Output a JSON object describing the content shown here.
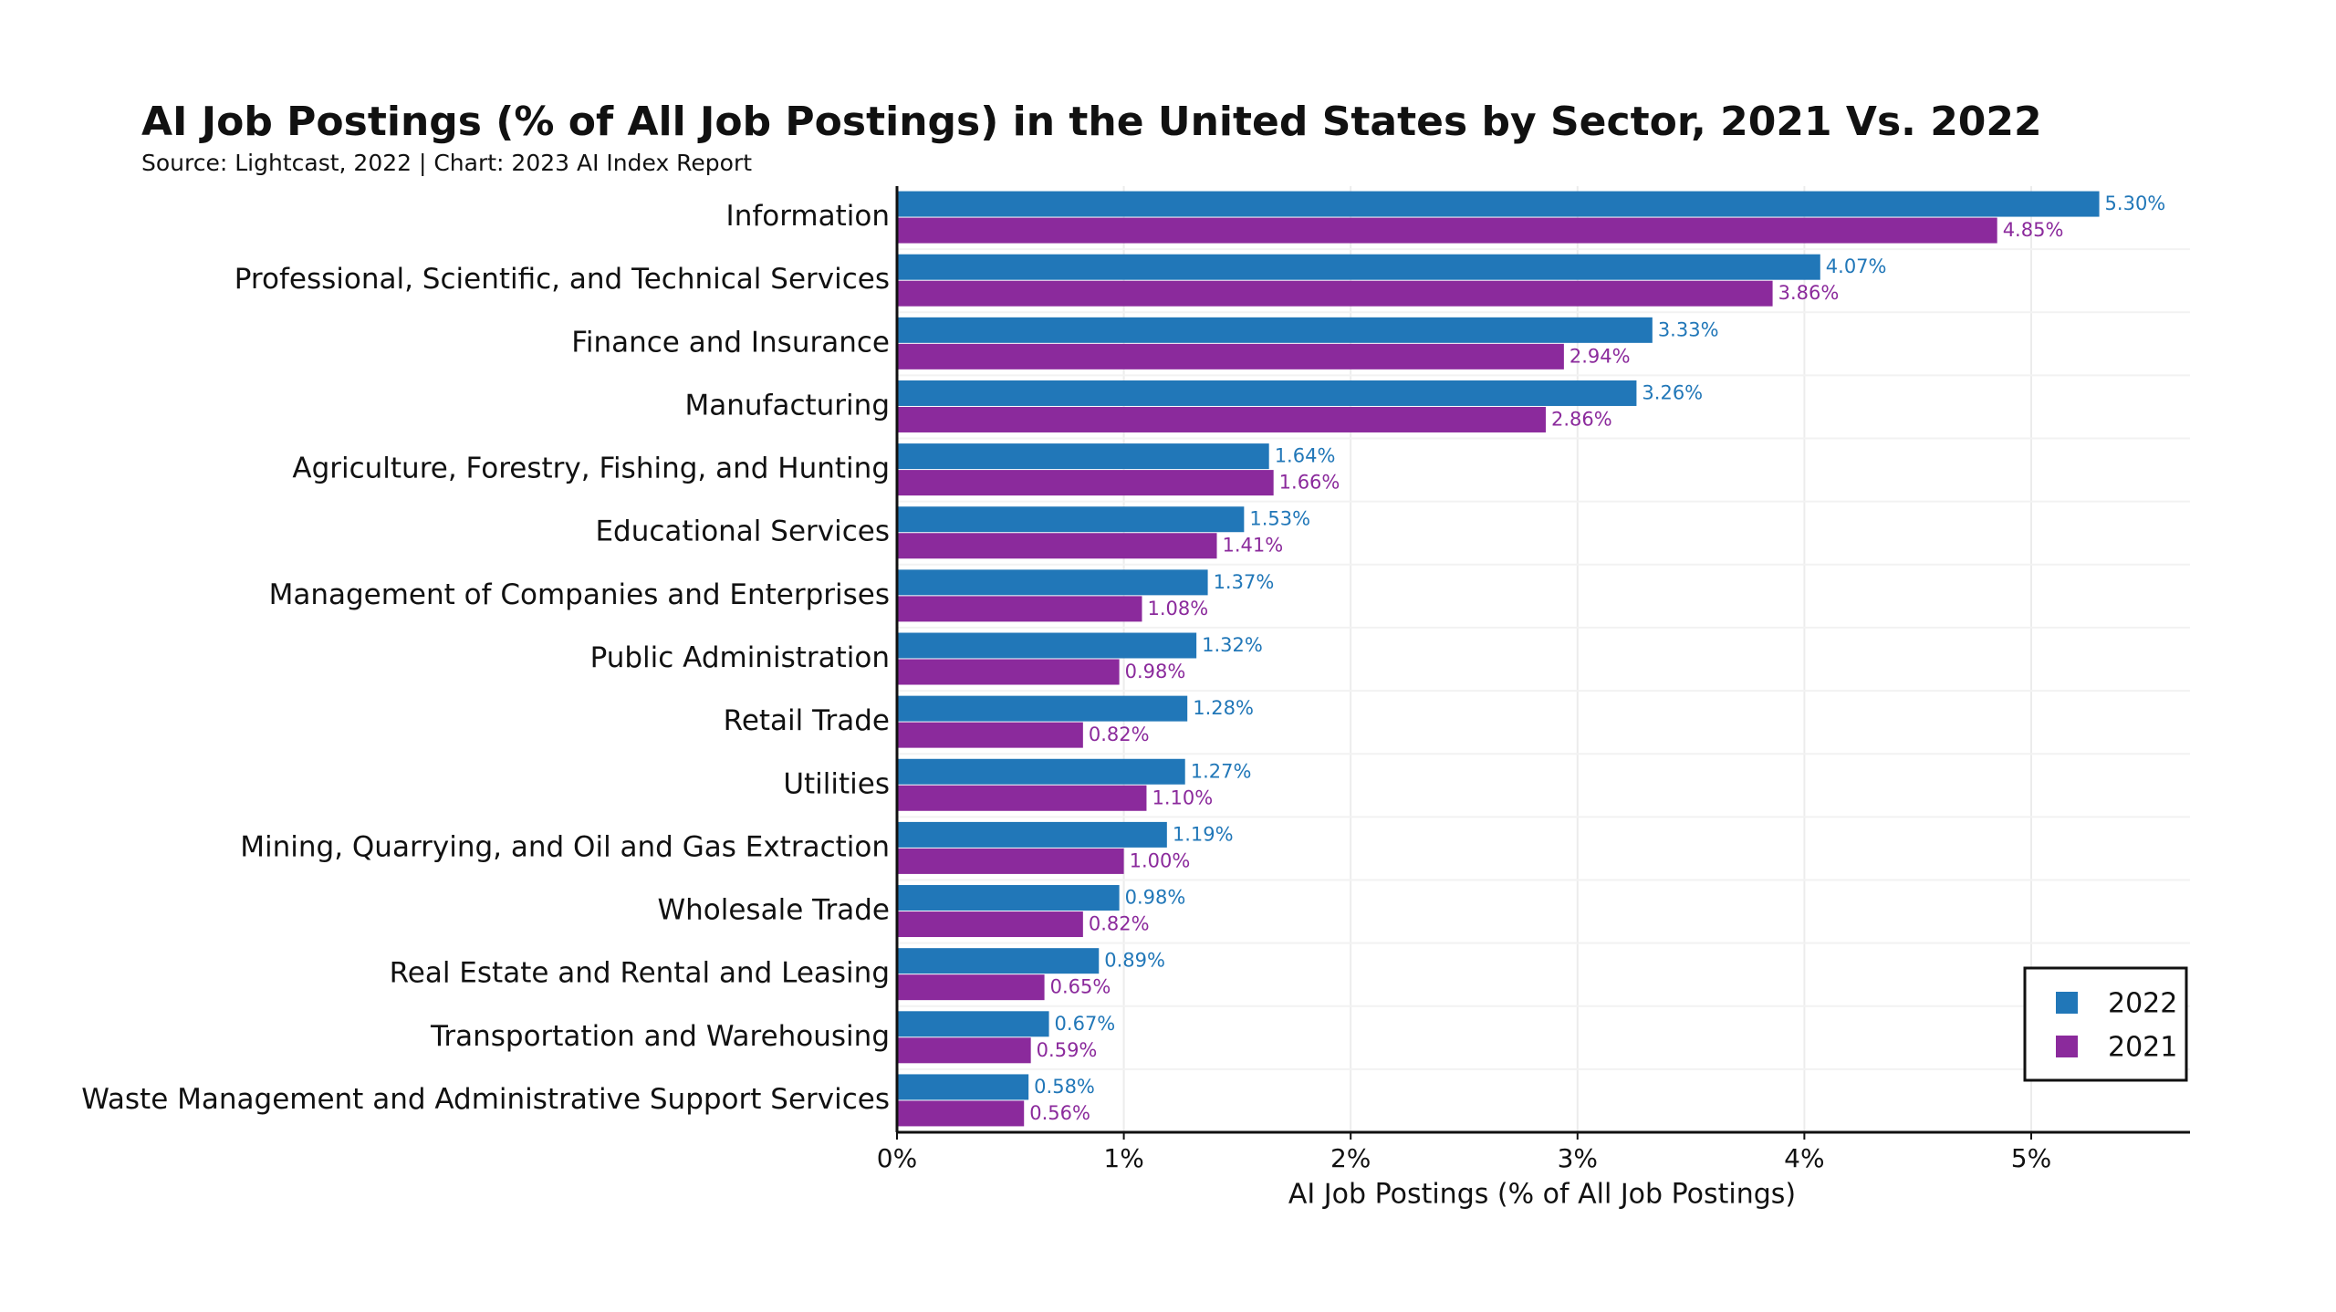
{
  "chart_data": {
    "type": "hbar",
    "title": "AI Job Postings (% of All Job Postings) in the United States by Sector, 2021 Vs. 2022",
    "subtitle": "Source: Lightcast, 2022 | Chart: 2023 AI Index Report",
    "xlabel": "AI Job Postings (% of All Job Postings)",
    "categories": [
      "Information",
      "Professional, Scientific, and Technical Services",
      "Finance and Insurance",
      "Manufacturing",
      "Agriculture, Forestry, Fishing, and Hunting",
      "Educational Services",
      "Management of Companies and Enterprises",
      "Public Administration",
      "Retail Trade",
      "Utilities",
      "Mining, Quarrying, and Oil and Gas Extraction",
      "Wholesale Trade",
      "Real Estate and Rental and Leasing",
      "Transportation and Warehousing",
      "Waste Management and Administrative Support Services"
    ],
    "series": [
      {
        "name": "2022",
        "color": "#2177b8",
        "values": [
          5.3,
          4.07,
          3.33,
          3.26,
          1.64,
          1.53,
          1.37,
          1.32,
          1.28,
          1.27,
          1.19,
          0.98,
          0.89,
          0.67,
          0.58
        ],
        "value_labels": [
          "5.30%",
          "4.07%",
          "3.33%",
          "3.26%",
          "1.64%",
          "1.53%",
          "1.37%",
          "1.32%",
          "1.28%",
          "1.27%",
          "1.19%",
          "0.98%",
          "0.89%",
          "0.67%",
          "0.58%"
        ]
      },
      {
        "name": "2021",
        "color": "#8b2a9c",
        "values": [
          4.85,
          3.86,
          2.94,
          2.86,
          1.66,
          1.41,
          1.08,
          0.98,
          0.82,
          1.1,
          1.0,
          0.82,
          0.65,
          0.59,
          0.56
        ],
        "value_labels": [
          "4.85%",
          "3.86%",
          "2.94%",
          "2.86%",
          "1.66%",
          "1.41%",
          "1.08%",
          "0.98%",
          "0.82%",
          "1.10%",
          "1.00%",
          "0.82%",
          "0.65%",
          "0.59%",
          "0.56%"
        ]
      }
    ],
    "xlim": [
      0,
      5.7
    ],
    "xticks": [
      {
        "value": 0,
        "label": "0%"
      },
      {
        "value": 1,
        "label": "1%"
      },
      {
        "value": 2,
        "label": "2%"
      },
      {
        "value": 3,
        "label": "3%"
      },
      {
        "value": 4,
        "label": "4%"
      },
      {
        "value": 5,
        "label": "5%"
      }
    ],
    "grid": true,
    "legend": "lower right"
  }
}
